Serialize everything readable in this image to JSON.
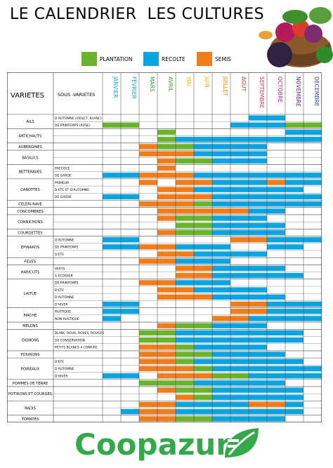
{
  "title": "LE CALENDRIER  LES CULTURES",
  "colors": {
    "plantation": "#6ab42d",
    "recolte": "#0aa4e0",
    "semis": "#f07d1a",
    "grid": "#444444"
  },
  "legend": [
    {
      "key": "plantation",
      "label": "PLANTATION"
    },
    {
      "key": "recolte",
      "label": "RECOLTE"
    },
    {
      "key": "semis",
      "label": "SEMIS"
    }
  ],
  "headers": {
    "varietes": "VARIETES",
    "sous_varietes": "SOUS -VARIETES"
  },
  "months": [
    {
      "label": "JANVIER",
      "color": "#1aa6de"
    },
    {
      "label": "FEVRIER",
      "color": "#1b9bd6"
    },
    {
      "label": "MARS",
      "color": "#2e9a48"
    },
    {
      "label": "AVRIL",
      "color": "#4a9e2a"
    },
    {
      "label": "MAI",
      "color": "#e6c400"
    },
    {
      "label": "JUIN",
      "color": "#e8b800"
    },
    {
      "label": "JUILLET",
      "color": "#e08a00"
    },
    {
      "label": "AOUT",
      "color": "#e04020"
    },
    {
      "label": "SEPTEMBRE",
      "color": "#e0306a"
    },
    {
      "label": "OCTOBRE",
      "color": "#b02a9a"
    },
    {
      "label": "NOVEMBRE",
      "color": "#5b2d8c"
    },
    {
      "label": "DECEMBRE",
      "color": "#2f4a9c"
    }
  ],
  "rows": [
    {
      "var": "AILS",
      "subs": [
        {
          "sub": "D'AUTOMNE (VIOLET, BLANC)",
          "cells": "________RR__"
        },
        {
          "sub": "DE PRINTEMPS (ROSE)",
          "cells": "PP_____RRRPP"
        }
      ]
    },
    {
      "var": "ARTICHAUTS",
      "subs": [
        {
          "sub": "",
          "cells": "___P______RR"
        },
        {
          "sub": "",
          "cells": "___PRRRRRRRR"
        }
      ]
    },
    {
      "var": "AUBERGINES",
      "subs": [
        {
          "sub": "",
          "cells": "__SPPRRRR___"
        }
      ]
    },
    {
      "var": "BASILICS",
      "subs": [
        {
          "sub": "",
          "cells": "__SSSRRRR___"
        },
        {
          "sub": "",
          "cells": "___SPPRRR___"
        }
      ]
    },
    {
      "var": "BETTERAVES",
      "subs": [
        {
          "sub": "PRECOCE",
          "cells": "___S________"
        },
        {
          "sub": "DE GARDE",
          "cells": "RRSSSRRRRRRR"
        }
      ]
    },
    {
      "var": "CAROTTES",
      "subs": [
        {
          "sub": "PRIMEUR",
          "cells": "__S_SSRRRSRR"
        },
        {
          "sub": "D'ETE ET D'AUTOMNE",
          "cells": "___SSRRRRRR_"
        },
        {
          "sub": "DE GARDE",
          "cells": "RR_SSSRRRRRR"
        }
      ]
    },
    {
      "var": "CELERI-RAVE",
      "subs": [
        {
          "sub": "",
          "cells": "__SSSPRRRRRR"
        }
      ]
    },
    {
      "var": "CONCOMBRES",
      "subs": [
        {
          "sub": "",
          "cells": "___SSSSSRR__"
        }
      ]
    },
    {
      "var": "CORNICHONS",
      "subs": [
        {
          "sub": "",
          "cells": "___SPPRRR___"
        },
        {
          "sub": "",
          "cells": "____PPRRRR__"
        }
      ]
    },
    {
      "var": "COURGETTES",
      "subs": [
        {
          "sub": "",
          "cells": "___SPPRRRR__"
        }
      ]
    },
    {
      "var": "EPINARDS",
      "subs": [
        {
          "sub": "D'AUTOMNE",
          "cells": "RR_____SSRRR"
        },
        {
          "sub": "DE PRINTEMPS",
          "cells": "RRSSRRR__RR_"
        },
        {
          "sub": "D'ETE",
          "cells": "___SSRRRR___"
        }
      ]
    },
    {
      "var": "FEVES",
      "subs": [
        {
          "sub": "",
          "cells": "__SSRRR_____"
        }
      ]
    },
    {
      "var": "HARICOTS",
      "subs": [
        {
          "sub": "VERTS",
          "cells": "____SSRRRR__"
        },
        {
          "sub": "A ECOSSER",
          "cells": "____SSRRRRR_"
        }
      ]
    },
    {
      "var": "LAITUE",
      "subs": [
        {
          "sub": "DE PRINTEMPS",
          "cells": "__SSRRR_____"
        },
        {
          "sub": "D'ETE",
          "cells": "___SSRRRR___"
        },
        {
          "sub": "D'AUTOMNE",
          "cells": "___SSSRRRR__"
        },
        {
          "sub": "D'HIVER",
          "cells": "RR_____SSRRR"
        }
      ]
    },
    {
      "var": "MACHE",
      "subs": [
        {
          "sub": "RUSTIQUE",
          "cells": "RR_____SSRRR"
        },
        {
          "sub": "NON RUSTIQUE",
          "cells": "R_____SSRRRR"
        }
      ]
    },
    {
      "var": "MELONS",
      "subs": [
        {
          "sub": "",
          "cells": "___SPPRRR___"
        }
      ]
    },
    {
      "var": "OIGNONS",
      "subs": [
        {
          "sub": "BLANC DOUX, ROSES, ROUGES",
          "cells": "__PPRRRRRRR_"
        },
        {
          "sub": "DE CONSERVATION",
          "cells": "__PPRRRRRRR_"
        },
        {
          "sub": "PETITS BLANCS A CONFIRE",
          "cells": "__SSPRRRR___"
        }
      ]
    },
    {
      "var": "POIVRONS",
      "subs": [
        {
          "sub": "",
          "cells": "__SSPPRRRR__"
        }
      ]
    },
    {
      "var": "POIREAUX",
      "subs": [
        {
          "sub": "D'ETE",
          "cells": "__SSPRRRRRR_"
        },
        {
          "sub": "D'AUTOMNE",
          "cells": "__SSSPRRRRRR"
        },
        {
          "sub": "D'HIVER",
          "cells": "RR_SSSPPRRRR"
        }
      ]
    },
    {
      "var": "POMMES DE TERRE",
      "subs": [
        {
          "sub": "",
          "cells": "__PPPRRRRR__"
        }
      ]
    },
    {
      "var": "POTIRONS ET COURGES",
      "subs": [
        {
          "sub": "",
          "cells": "___SPPRRRRR_"
        },
        {
          "sub": "",
          "cells": "____SPRRRRR_"
        }
      ]
    },
    {
      "var": "RADIS",
      "subs": [
        {
          "sub": "",
          "cells": "__SSRRRRSSR_"
        },
        {
          "sub": "",
          "cells": "_RSSRRRRRRR_"
        }
      ]
    },
    {
      "var": "TOMATES",
      "subs": [
        {
          "sub": "",
          "cells": "__SSPPRRRR__"
        }
      ]
    }
  ],
  "logo": {
    "text": "Coopazur"
  }
}
